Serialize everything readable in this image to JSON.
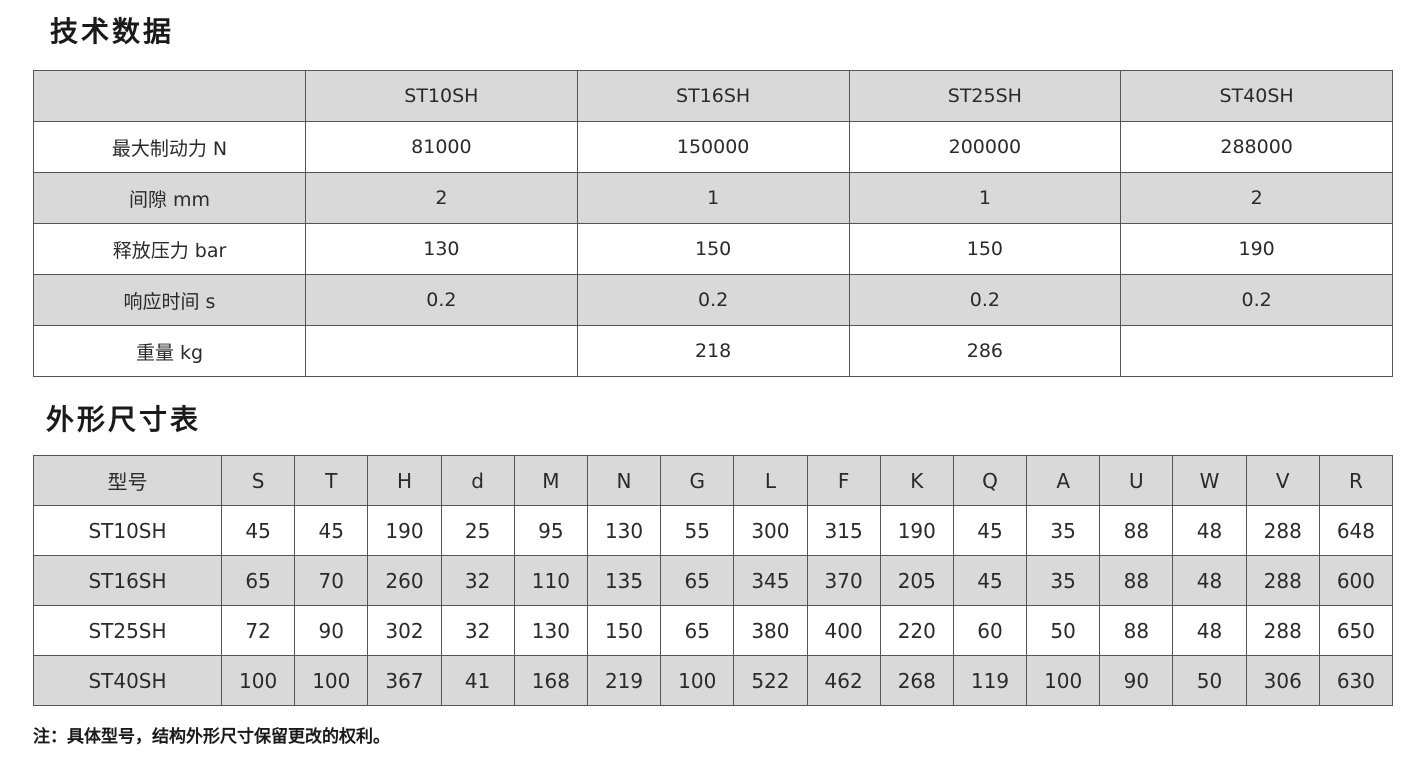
{
  "spec_section": {
    "title": "技术数据",
    "header": [
      "",
      "ST10SH",
      "ST16SH",
      "ST25SH",
      "ST40SH"
    ],
    "rows": [
      [
        "最大制动力  N",
        "81000",
        "150000",
        "200000",
        "288000"
      ],
      [
        "间隙   mm",
        "2",
        "1",
        "1",
        "2"
      ],
      [
        "释放压力  bar",
        "130",
        "150",
        "150",
        "190"
      ],
      [
        "响应时间   s",
        "0.2",
        "0.2",
        "0.2",
        "0.2"
      ],
      [
        "重量   kg",
        "",
        "218",
        "286",
        ""
      ]
    ]
  },
  "dims_section": {
    "title": "外形尺寸表",
    "header": [
      "型号",
      "S",
      "T",
      "H",
      "d",
      "M",
      "N",
      "G",
      "L",
      "F",
      "K",
      "Q",
      "A",
      "U",
      "W",
      "V",
      "R"
    ],
    "rows": [
      [
        "ST10SH",
        "45",
        "45",
        "190",
        "25",
        "95",
        "130",
        "55",
        "300",
        "315",
        "190",
        "45",
        "35",
        "88",
        "48",
        "288",
        "648"
      ],
      [
        "ST16SH",
        "65",
        "70",
        "260",
        "32",
        "110",
        "135",
        "65",
        "345",
        "370",
        "205",
        "45",
        "35",
        "88",
        "48",
        "288",
        "600"
      ],
      [
        "ST25SH",
        "72",
        "90",
        "302",
        "32",
        "130",
        "150",
        "65",
        "380",
        "400",
        "220",
        "60",
        "50",
        "88",
        "48",
        "288",
        "650"
      ],
      [
        "ST40SH",
        "100",
        "100",
        "367",
        "41",
        "168",
        "219",
        "100",
        "522",
        "462",
        "268",
        "119",
        "100",
        "90",
        "50",
        "306",
        "630"
      ]
    ]
  },
  "footnote": "注：具体型号，结构外形尺寸保留更改的权利。",
  "colors": {
    "header_gray": "#d9d9d9",
    "border": "#555555"
  }
}
